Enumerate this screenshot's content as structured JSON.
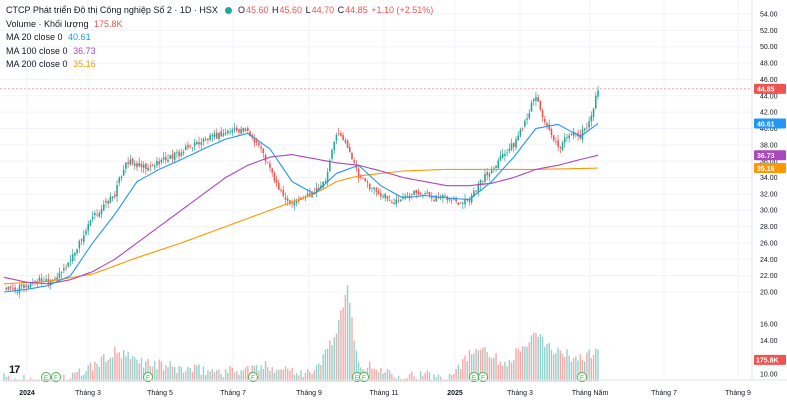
{
  "header": {
    "title": "CTCP Phát triển Đô thị Công nghiệp Số 2 · 1D · HSX",
    "ohlc": {
      "o_label": "O",
      "o": "45.60",
      "h_label": "H",
      "h": "45.60",
      "l_label": "L",
      "l": "44.70",
      "c_label": "C",
      "c": "44.85",
      "change": "+1.10 (+2.51%)"
    },
    "volume_label": "Volume · Khối lượng",
    "volume_value": "175.8K",
    "ma20_label": "MA 20 close 0",
    "ma20_value": "40.61",
    "ma100_label": "MA 100 close 0",
    "ma100_value": "36.73",
    "ma200_label": "MA 200 close 0",
    "ma200_value": "35.16",
    "logo_text": "17"
  },
  "colors": {
    "up": "#26a69a",
    "down": "#ef5350",
    "ma20": "#2196f3",
    "ma100": "#ab47bc",
    "ma200": "#ff9800",
    "grid": "#f0f3fa",
    "text": "#131722",
    "last_price": "#ef5350"
  },
  "chart_data": {
    "type": "candlestick",
    "price_axis": {
      "ticks": [
        "54.00",
        "52.00",
        "50.00",
        "48.00",
        "46.00",
        "44.00",
        "42.00",
        "40.00",
        "38.00",
        "36.00",
        "34.00",
        "32.00",
        "30.00",
        "28.00",
        "26.00",
        "24.00",
        "22.00",
        "20.00"
      ],
      "range": [
        19,
        55
      ]
    },
    "volume_axis": {
      "ticks": [
        "16.00",
        "14.00",
        "12.00",
        "10.00"
      ]
    },
    "time_axis": {
      "labels": [
        "2024",
        "Tháng 3",
        "Tháng 5",
        "Tháng 7",
        "Tháng 9",
        "Tháng 11",
        "2025",
        "Tháng 3",
        "Tháng Năm",
        "Tháng 7",
        "Tháng 9"
      ]
    },
    "price_labels": {
      "last": "44.85",
      "ma20": "40.61",
      "ma100": "36.73",
      "ma200": "35.16",
      "volume": "175.8K"
    },
    "close_path": [
      [
        0,
        20.5
      ],
      [
        5,
        20.2
      ],
      [
        10,
        20.8
      ],
      [
        15,
        21.5
      ],
      [
        20,
        21.5
      ],
      [
        25,
        22.0
      ],
      [
        30,
        24.0
      ],
      [
        35,
        26.5
      ],
      [
        40,
        29.0
      ],
      [
        45,
        30.5
      ],
      [
        50,
        32.0
      ],
      [
        55,
        36.0
      ],
      [
        60,
        35.5
      ],
      [
        65,
        35.0
      ],
      [
        70,
        36.0
      ],
      [
        75,
        36.5
      ],
      [
        80,
        37.0
      ],
      [
        85,
        38.0
      ],
      [
        90,
        38.5
      ],
      [
        95,
        39.0
      ],
      [
        100,
        39.5
      ],
      [
        105,
        40.0
      ],
      [
        110,
        39.5
      ],
      [
        115,
        38.0
      ],
      [
        120,
        35.0
      ],
      [
        125,
        32.0
      ],
      [
        130,
        31.0
      ],
      [
        135,
        31.5
      ],
      [
        140,
        32.5
      ],
      [
        145,
        33.5
      ],
      [
        150,
        39.5
      ],
      [
        155,
        38.0
      ],
      [
        160,
        34.0
      ],
      [
        165,
        33.0
      ],
      [
        170,
        32.0
      ],
      [
        175,
        31.0
      ],
      [
        180,
        31.5
      ],
      [
        185,
        32.5
      ],
      [
        190,
        32.0
      ],
      [
        195,
        31.5
      ],
      [
        200,
        31.5
      ],
      [
        205,
        31.0
      ],
      [
        210,
        31.5
      ],
      [
        215,
        33.5
      ],
      [
        220,
        35.0
      ],
      [
        225,
        37.0
      ],
      [
        230,
        38.0
      ],
      [
        235,
        41.0
      ],
      [
        240,
        44.0
      ],
      [
        245,
        40.0
      ],
      [
        250,
        37.5
      ],
      [
        255,
        39.5
      ],
      [
        260,
        39.0
      ],
      [
        265,
        41.5
      ],
      [
        268,
        44.85
      ]
    ],
    "ma20_path": [
      [
        0,
        20.0
      ],
      [
        10,
        20.3
      ],
      [
        20,
        20.8
      ],
      [
        30,
        22.0
      ],
      [
        40,
        26.0
      ],
      [
        50,
        29.5
      ],
      [
        60,
        33.5
      ],
      [
        70,
        35.0
      ],
      [
        80,
        36.2
      ],
      [
        90,
        37.5
      ],
      [
        100,
        38.7
      ],
      [
        110,
        39.4
      ],
      [
        120,
        37.5
      ],
      [
        130,
        33.5
      ],
      [
        140,
        32.0
      ],
      [
        150,
        34.5
      ],
      [
        160,
        35.5
      ],
      [
        170,
        33.0
      ],
      [
        180,
        31.5
      ],
      [
        190,
        31.8
      ],
      [
        200,
        31.5
      ],
      [
        210,
        31.3
      ],
      [
        220,
        33.5
      ],
      [
        230,
        36.5
      ],
      [
        240,
        40.0
      ],
      [
        250,
        40.5
      ],
      [
        260,
        39.0
      ],
      [
        268,
        40.61
      ]
    ],
    "ma100_path": [
      [
        0,
        21.8
      ],
      [
        10,
        21.2
      ],
      [
        20,
        21.0
      ],
      [
        30,
        21.5
      ],
      [
        40,
        22.5
      ],
      [
        50,
        24.0
      ],
      [
        60,
        26.0
      ],
      [
        70,
        28.0
      ],
      [
        80,
        30.0
      ],
      [
        90,
        32.0
      ],
      [
        100,
        34.0
      ],
      [
        110,
        35.5
      ],
      [
        120,
        36.5
      ],
      [
        130,
        36.8
      ],
      [
        140,
        36.3
      ],
      [
        150,
        35.8
      ],
      [
        160,
        35.5
      ],
      [
        170,
        34.8
      ],
      [
        180,
        34.0
      ],
      [
        190,
        33.5
      ],
      [
        200,
        33.0
      ],
      [
        210,
        33.0
      ],
      [
        220,
        33.3
      ],
      [
        230,
        34.0
      ],
      [
        240,
        35.0
      ],
      [
        250,
        35.5
      ],
      [
        260,
        36.2
      ],
      [
        268,
        36.73
      ]
    ],
    "ma200_path": [
      [
        0,
        21.0
      ],
      [
        20,
        21.3
      ],
      [
        40,
        22.2
      ],
      [
        60,
        24.2
      ],
      [
        80,
        26.0
      ],
      [
        100,
        28.0
      ],
      [
        120,
        30.0
      ],
      [
        140,
        32.0
      ],
      [
        150,
        33.5
      ],
      [
        160,
        34.2
      ],
      [
        180,
        34.8
      ],
      [
        200,
        35.0
      ],
      [
        220,
        35.0
      ],
      [
        240,
        35.0
      ],
      [
        260,
        35.1
      ],
      [
        268,
        35.16
      ]
    ],
    "volume_path": [
      [
        0,
        9.3
      ],
      [
        30,
        9.4
      ],
      [
        40,
        10.8
      ],
      [
        50,
        12.5
      ],
      [
        60,
        11.5
      ],
      [
        80,
        10.5
      ],
      [
        100,
        10.2
      ],
      [
        120,
        10.8
      ],
      [
        140,
        10.0
      ],
      [
        150,
        15.0
      ],
      [
        155,
        20.0
      ],
      [
        160,
        11.0
      ],
      [
        180,
        9.8
      ],
      [
        200,
        9.6
      ],
      [
        215,
        13.5
      ],
      [
        225,
        11.0
      ],
      [
        240,
        14.5
      ],
      [
        250,
        12.5
      ],
      [
        260,
        11.8
      ],
      [
        268,
        12.7
      ]
    ]
  }
}
